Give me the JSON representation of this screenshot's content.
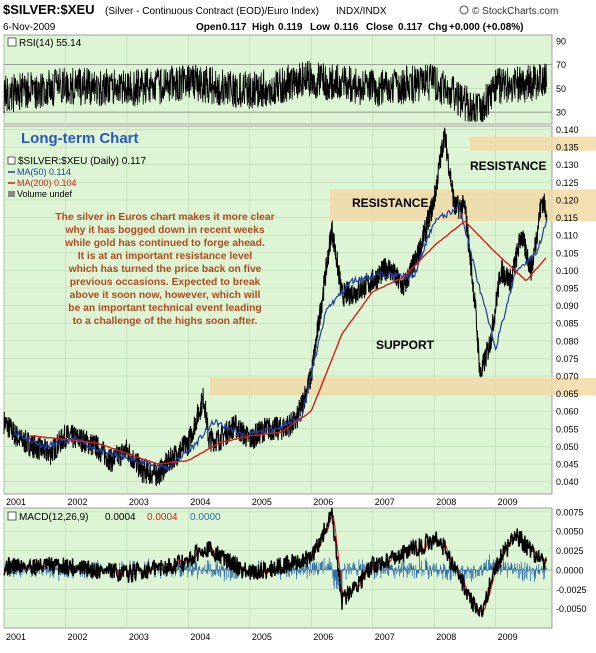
{
  "header": {
    "symbol": "$SILVER:$XEU",
    "description": "(Silver - Continuous Contract (EOD)/Euro Index)",
    "exchange": "INDX/INDX",
    "copyright": "© StockCharts.com",
    "date": "6-Nov-2009",
    "open_label": "Open",
    "open": "0.117",
    "high_label": "High",
    "high": "0.119",
    "low_label": "Low",
    "low": "0.116",
    "close_label": "Close",
    "close": "0.117",
    "chg_label": "Chg",
    "chg": "+0.000 (+0.08%)"
  },
  "rsi_panel": {
    "label": "RSI(14) 55.14",
    "ticks": [
      "90",
      "70",
      "50",
      "30"
    ]
  },
  "price_panel": {
    "subtitle": "Long-term Chart",
    "legend_symbol": "$SILVER:$XEU (Daily) 0.117",
    "legend_ma50": "MA(50) 0.114",
    "legend_ma200": "MA(200) 0.104",
    "legend_volume": "Volume undef",
    "annotation": [
      "The silver in Euros chart makes it more clear",
      "why it has bogged down in recent weeks",
      "while gold has continued to forge ahead.",
      "It is at an important resistance level",
      "which has turned the price back on five",
      "previous occasions. Expected to break",
      "above it soon now, however, which will",
      "be an important technical event leading",
      "to a challenge of the highs soon after."
    ],
    "resistance_top_label": "RESISTANCE",
    "resistance_label": "RESISTANCE",
    "support_label": "SUPPORT",
    "y_ticks": [
      "0.140",
      "0.135",
      "0.130",
      "0.125",
      "0.120",
      "0.115",
      "0.110",
      "0.105",
      "0.100",
      "0.095",
      "0.090",
      "0.085",
      "0.080",
      "0.075",
      "0.070",
      "0.065",
      "0.060",
      "0.055",
      "0.050",
      "0.045",
      "0.040"
    ]
  },
  "macd_panel": {
    "label_name": "MACD(12,26,9)",
    "label_macd": "0.0004",
    "label_signal": "0.0004",
    "label_hist": "0.0000",
    "ticks": [
      "0.0075",
      "0.0050",
      "0.0025",
      "0.0000",
      "-0.0025",
      "-0.0050"
    ]
  },
  "x_labels": [
    "2001",
    "2002",
    "2003",
    "2004",
    "2005",
    "2006",
    "2007",
    "2008",
    "2009"
  ],
  "colors": {
    "panel_bg": "#ddf5d5",
    "zone": "#f2d9a6",
    "annotation": "#b5481c",
    "subtitle": "#2d55c8",
    "ma50": "#1f3f9c",
    "ma200": "#d81c1c",
    "rsi_line": "#000000",
    "macd_hist": "#2f6fa8"
  },
  "chart_data": {
    "type": "line",
    "interval": "daily",
    "series": [
      {
        "name": "$SILVER:$XEU",
        "x": [
          "2001-01",
          "2001-04",
          "2001-07",
          "2001-10",
          "2002-01",
          "2002-04",
          "2002-07",
          "2002-10",
          "2003-01",
          "2003-04",
          "2003-07",
          "2003-10",
          "2004-01",
          "2004-04",
          "2004-05",
          "2004-07",
          "2004-10",
          "2005-01",
          "2005-04",
          "2005-07",
          "2005-10",
          "2006-01",
          "2006-04",
          "2006-05",
          "2006-07",
          "2006-10",
          "2007-01",
          "2007-04",
          "2007-07",
          "2007-10",
          "2008-01",
          "2008-03",
          "2008-05",
          "2008-07",
          "2008-09",
          "2008-10",
          "2008-12",
          "2009-02",
          "2009-04",
          "2009-06",
          "2009-08",
          "2009-10",
          "2009-11"
        ],
        "values": [
          0.057,
          0.052,
          0.05,
          0.048,
          0.053,
          0.052,
          0.05,
          0.046,
          0.049,
          0.043,
          0.042,
          0.047,
          0.051,
          0.064,
          0.052,
          0.052,
          0.056,
          0.052,
          0.055,
          0.055,
          0.057,
          0.07,
          0.101,
          0.112,
          0.093,
          0.094,
          0.097,
          0.101,
          0.095,
          0.105,
          0.12,
          0.139,
          0.118,
          0.118,
          0.09,
          0.07,
          0.08,
          0.1,
          0.097,
          0.11,
          0.1,
          0.12,
          0.117
        ]
      },
      {
        "name": "MA(50)",
        "x": [
          "2001-03",
          "2001-09",
          "2002-03",
          "2002-09",
          "2003-03",
          "2003-09",
          "2004-02",
          "2004-06",
          "2004-12",
          "2005-06",
          "2005-11",
          "2006-04",
          "2006-09",
          "2007-03",
          "2007-09",
          "2008-01",
          "2008-06",
          "2008-10",
          "2009-01",
          "2009-05",
          "2009-09",
          "2009-11"
        ],
        "values": [
          0.054,
          0.05,
          0.052,
          0.048,
          0.046,
          0.044,
          0.05,
          0.057,
          0.053,
          0.055,
          0.058,
          0.089,
          0.097,
          0.099,
          0.098,
          0.114,
          0.118,
          0.094,
          0.078,
          0.1,
          0.105,
          0.114
        ]
      },
      {
        "name": "MA(200)",
        "x": [
          "2001-06",
          "2002-01",
          "2002-07",
          "2003-01",
          "2003-07",
          "2004-01",
          "2004-07",
          "2005-01",
          "2005-07",
          "2006-01",
          "2006-07",
          "2007-01",
          "2007-07",
          "2008-01",
          "2008-07",
          "2009-01",
          "2009-07",
          "2009-11"
        ],
        "values": [
          0.053,
          0.052,
          0.051,
          0.048,
          0.045,
          0.046,
          0.051,
          0.053,
          0.054,
          0.06,
          0.082,
          0.094,
          0.098,
          0.107,
          0.114,
          0.105,
          0.097,
          0.104
        ]
      }
    ],
    "rsi": {
      "x": [
        "2001-01",
        "2002-01",
        "2003-01",
        "2004-01",
        "2005-01",
        "2006-01",
        "2007-01",
        "2008-01",
        "2008-10",
        "2009-01",
        "2009-11"
      ],
      "values": [
        45,
        52,
        50,
        55,
        48,
        58,
        50,
        55,
        30,
        52,
        55.14
      ],
      "ylim": [
        20,
        95
      ]
    },
    "macd": {
      "x": [
        "2001-01",
        "2002-01",
        "2003-01",
        "2004-01",
        "2004-04",
        "2005-01",
        "2006-01",
        "2006-05",
        "2006-07",
        "2007-01",
        "2008-02",
        "2008-10",
        "2009-01",
        "2009-05",
        "2009-11"
      ],
      "values": [
        0.0005,
        0.0005,
        -0.0005,
        0.001,
        0.003,
        -0.0005,
        0.0015,
        0.007,
        -0.004,
        0.0005,
        0.004,
        -0.006,
        0.0005,
        0.0045,
        0.0004
      ],
      "ylim": [
        -0.0075,
        0.008
      ]
    },
    "zones": [
      {
        "label": "RESISTANCE",
        "y_range": [
          0.134,
          0.138
        ]
      },
      {
        "label": "RESISTANCE",
        "y_range": [
          0.114,
          0.123
        ]
      },
      {
        "label": "SUPPORT",
        "y_range": [
          0.0645,
          0.0695
        ]
      }
    ],
    "ylim": [
      0.0365,
      0.141
    ],
    "xlim": [
      "2001-01",
      "2009-11"
    ],
    "grid": true,
    "legend_position": "top-left"
  }
}
